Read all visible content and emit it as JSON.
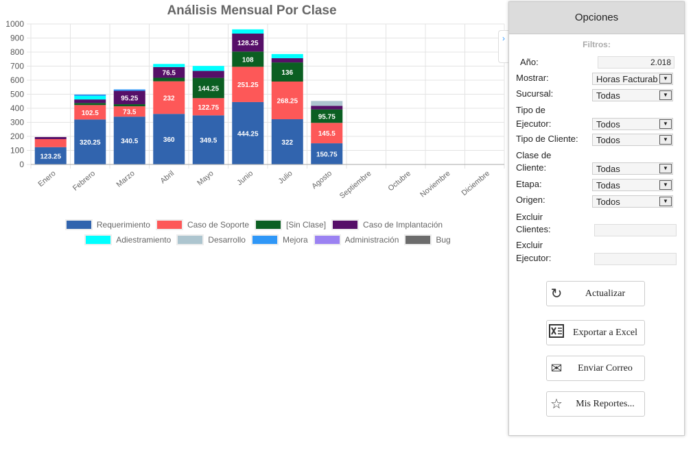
{
  "chart_data": {
    "type": "bar",
    "stacked": true,
    "title": "Análisis Mensual Por Clase",
    "xlabel": "",
    "ylabel": "",
    "ylim": [
      0,
      1000
    ],
    "yticks": [
      0,
      100,
      200,
      300,
      400,
      500,
      600,
      700,
      800,
      900,
      1000
    ],
    "grid": true,
    "legend_position": "bottom",
    "categories": [
      "Enero",
      "Febrero",
      "Marzo",
      "Abril",
      "Mayo",
      "Junio",
      "Julio",
      "Agosto",
      "Septiembre",
      "Octubre",
      "Noviembre",
      "Diciembre"
    ],
    "series": [
      {
        "name": "Requerimiento",
        "color": "#3164ae",
        "values": [
          123.25,
          320.25,
          340.5,
          360,
          349.5,
          444.25,
          322,
          150.75,
          0,
          0,
          0,
          0
        ]
      },
      {
        "name": "Caso de Soporte",
        "color": "#fd5858",
        "values": [
          57,
          102.5,
          73.5,
          232,
          122.75,
          251.25,
          268.25,
          145.5,
          0,
          0,
          0,
          0
        ]
      },
      {
        "name": "[Sin Clase]",
        "color": "#0b5f22",
        "values": [
          0,
          15,
          15,
          25,
          144.25,
          108,
          136,
          95.75,
          0,
          0,
          0,
          0
        ]
      },
      {
        "name": "Caso de Implantación",
        "color": "#560f68",
        "values": [
          15,
          25,
          95.25,
          76.5,
          50,
          128.25,
          30,
          25,
          0,
          0,
          0,
          0
        ]
      },
      {
        "name": "Adiestramiento",
        "color": "#00ffff",
        "values": [
          0,
          25,
          0,
          22,
          35,
          30,
          30,
          0,
          0,
          0,
          0,
          0
        ]
      },
      {
        "name": "Desarrollo",
        "color": "#adc5cf",
        "values": [
          0,
          0,
          0,
          0,
          0,
          0,
          0,
          35,
          0,
          0,
          0,
          0
        ]
      },
      {
        "name": "Mejora",
        "color": "#2f97f7",
        "values": [
          0,
          10,
          10,
          0,
          0,
          0,
          0,
          0,
          0,
          0,
          0,
          0
        ]
      },
      {
        "name": "Administración",
        "color": "#9b82f2",
        "values": [
          0,
          0,
          0,
          0,
          0,
          0,
          0,
          0,
          0,
          0,
          0,
          0
        ]
      },
      {
        "name": "Bug",
        "color": "#6c6c6c",
        "values": [
          0,
          0,
          0,
          0,
          0,
          0,
          0,
          0,
          0,
          0,
          0,
          0
        ]
      }
    ]
  },
  "panel": {
    "title": "Opciones",
    "filters_label": "Filtros:",
    "anio_label": "Año:",
    "anio_value": "2.018",
    "mostrar_label": "Mostrar:",
    "mostrar_value": "Horas Facturables",
    "sucursal_label": "Sucursal:",
    "sucursal_value": "Todas",
    "tipo_ejecutor_label_1": "Tipo de",
    "tipo_ejecutor_label_2": "Ejecutor:",
    "tipo_ejecutor_value": "Todos",
    "tipo_cliente_label": "Tipo de Cliente:",
    "tipo_cliente_value": "Todos",
    "clase_cliente_label_1": "Clase de",
    "clase_cliente_label_2": "Cliente:",
    "clase_cliente_value": "Todas",
    "etapa_label": "Etapa:",
    "etapa_value": "Todas",
    "origen_label": "Origen:",
    "origen_value": "Todos",
    "excluir_clientes_label_1": "Excluir",
    "excluir_clientes_label_2": "Clientes:",
    "excluir_clientes_value": "",
    "excluir_ejecutor_label_1": "Excluir",
    "excluir_ejecutor_label_2": "Ejecutor:",
    "excluir_ejecutor_value": "",
    "buttons": {
      "actualizar": "Actualizar",
      "exportar": "Exportar a Excel",
      "correo": "Enviar Correo",
      "reportes": "Mis Reportes..."
    }
  }
}
